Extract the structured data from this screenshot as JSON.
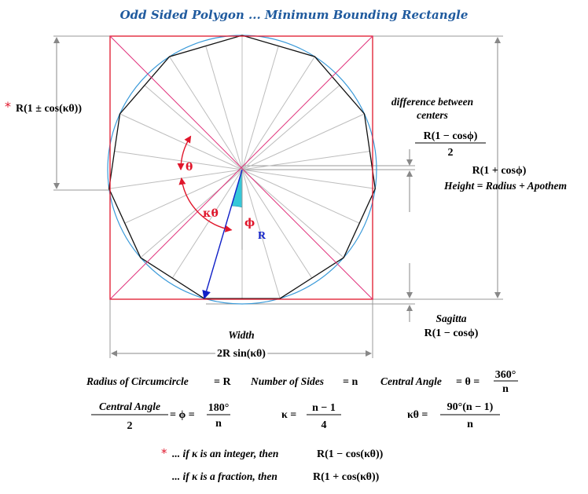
{
  "title": "Odd Sided Polygon ... Minimum Bounding Rectangle",
  "colors": {
    "title": "#1f5a9e",
    "rectangle": "#e0162b",
    "diagonals": "#e0307a",
    "circle": "#3a9ad9",
    "radius_arrow": "#1020c8",
    "angle_arrows": "#e0162b",
    "phi_fill": "#36c8d8",
    "asterisk": "#e0162b"
  },
  "left_dimension": {
    "asterisk": "*",
    "label": "R(1 ± cos(κθ))"
  },
  "center_difference": {
    "label_line1": "difference between",
    "label_line2": "centers",
    "numerator": "R(1 − cosϕ)",
    "denominator": "2"
  },
  "height": {
    "formula": "R(1 + cosϕ)",
    "label": "Height = Radius + Apothem"
  },
  "angles": {
    "theta": "θ",
    "kappa_theta": "κθ",
    "phi": "ϕ",
    "radius": "R"
  },
  "sagitta": {
    "label": "Sagitta",
    "formula": "R(1 − cosϕ)"
  },
  "width": {
    "label": "Width",
    "formula": "2R sin(κθ)"
  },
  "formulas": {
    "circumcircle": {
      "label": "Radius of Circumcircle",
      "value": "= R"
    },
    "sides": {
      "label": "Number of Sides",
      "value": "= n"
    },
    "central_angle": {
      "label": "Central Angle",
      "symbol": "= θ =",
      "numerator": "360°",
      "denominator": "n"
    },
    "half_angle": {
      "numerator": "Central Angle",
      "denominator": "2",
      "symbol": "= ϕ =",
      "value_numerator": "180°",
      "value_denominator": "n"
    },
    "kappa": {
      "symbol": "κ =",
      "numerator": "n − 1",
      "denominator": "4"
    },
    "kappa_theta": {
      "symbol": "κθ =",
      "numerator": "90°(n − 1)",
      "denominator": "n"
    }
  },
  "footnotes": {
    "integer": {
      "asterisk": "*",
      "text": "... if κ is an integer, then",
      "formula": "R(1 − cos(κθ))"
    },
    "fraction": {
      "text": "... if κ is a fraction, then",
      "formula": "R(1 + cos(κθ))"
    }
  }
}
